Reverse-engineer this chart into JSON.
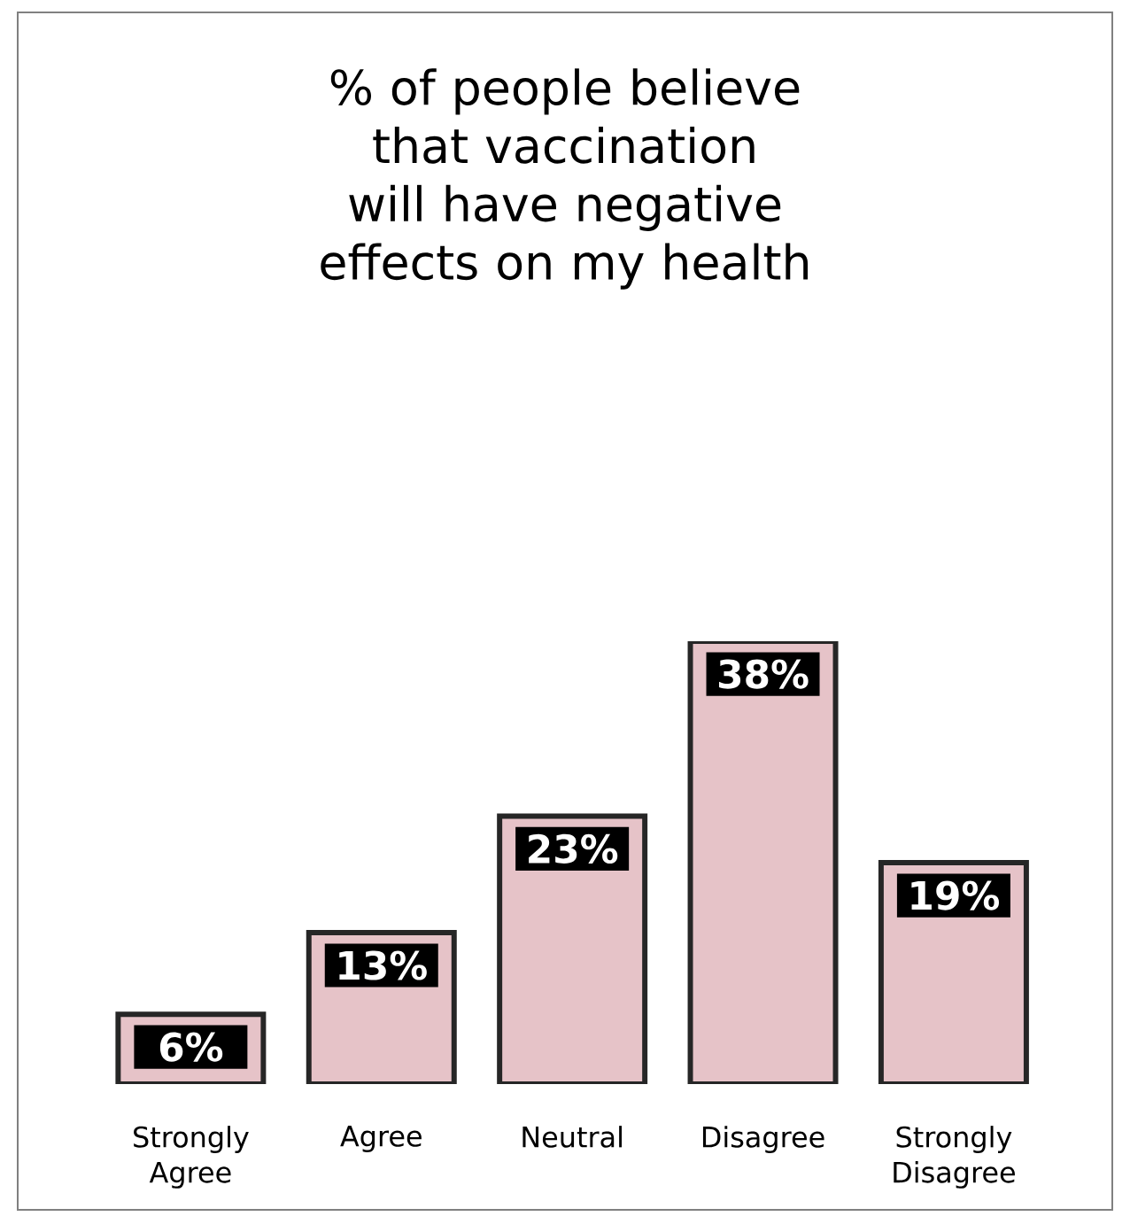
{
  "chart_data": {
    "type": "bar",
    "title": "% of people believe that vaccination will have negative effects on my health",
    "categories": [
      "Strongly Agree",
      "Agree",
      "Neutral",
      "Disagree",
      "Strongly Disagree"
    ],
    "values": [
      6,
      13,
      23,
      38,
      19
    ],
    "value_labels": [
      "6%",
      "13%",
      "23%",
      "38%",
      "19%"
    ],
    "color": "#e6c3c8"
  }
}
